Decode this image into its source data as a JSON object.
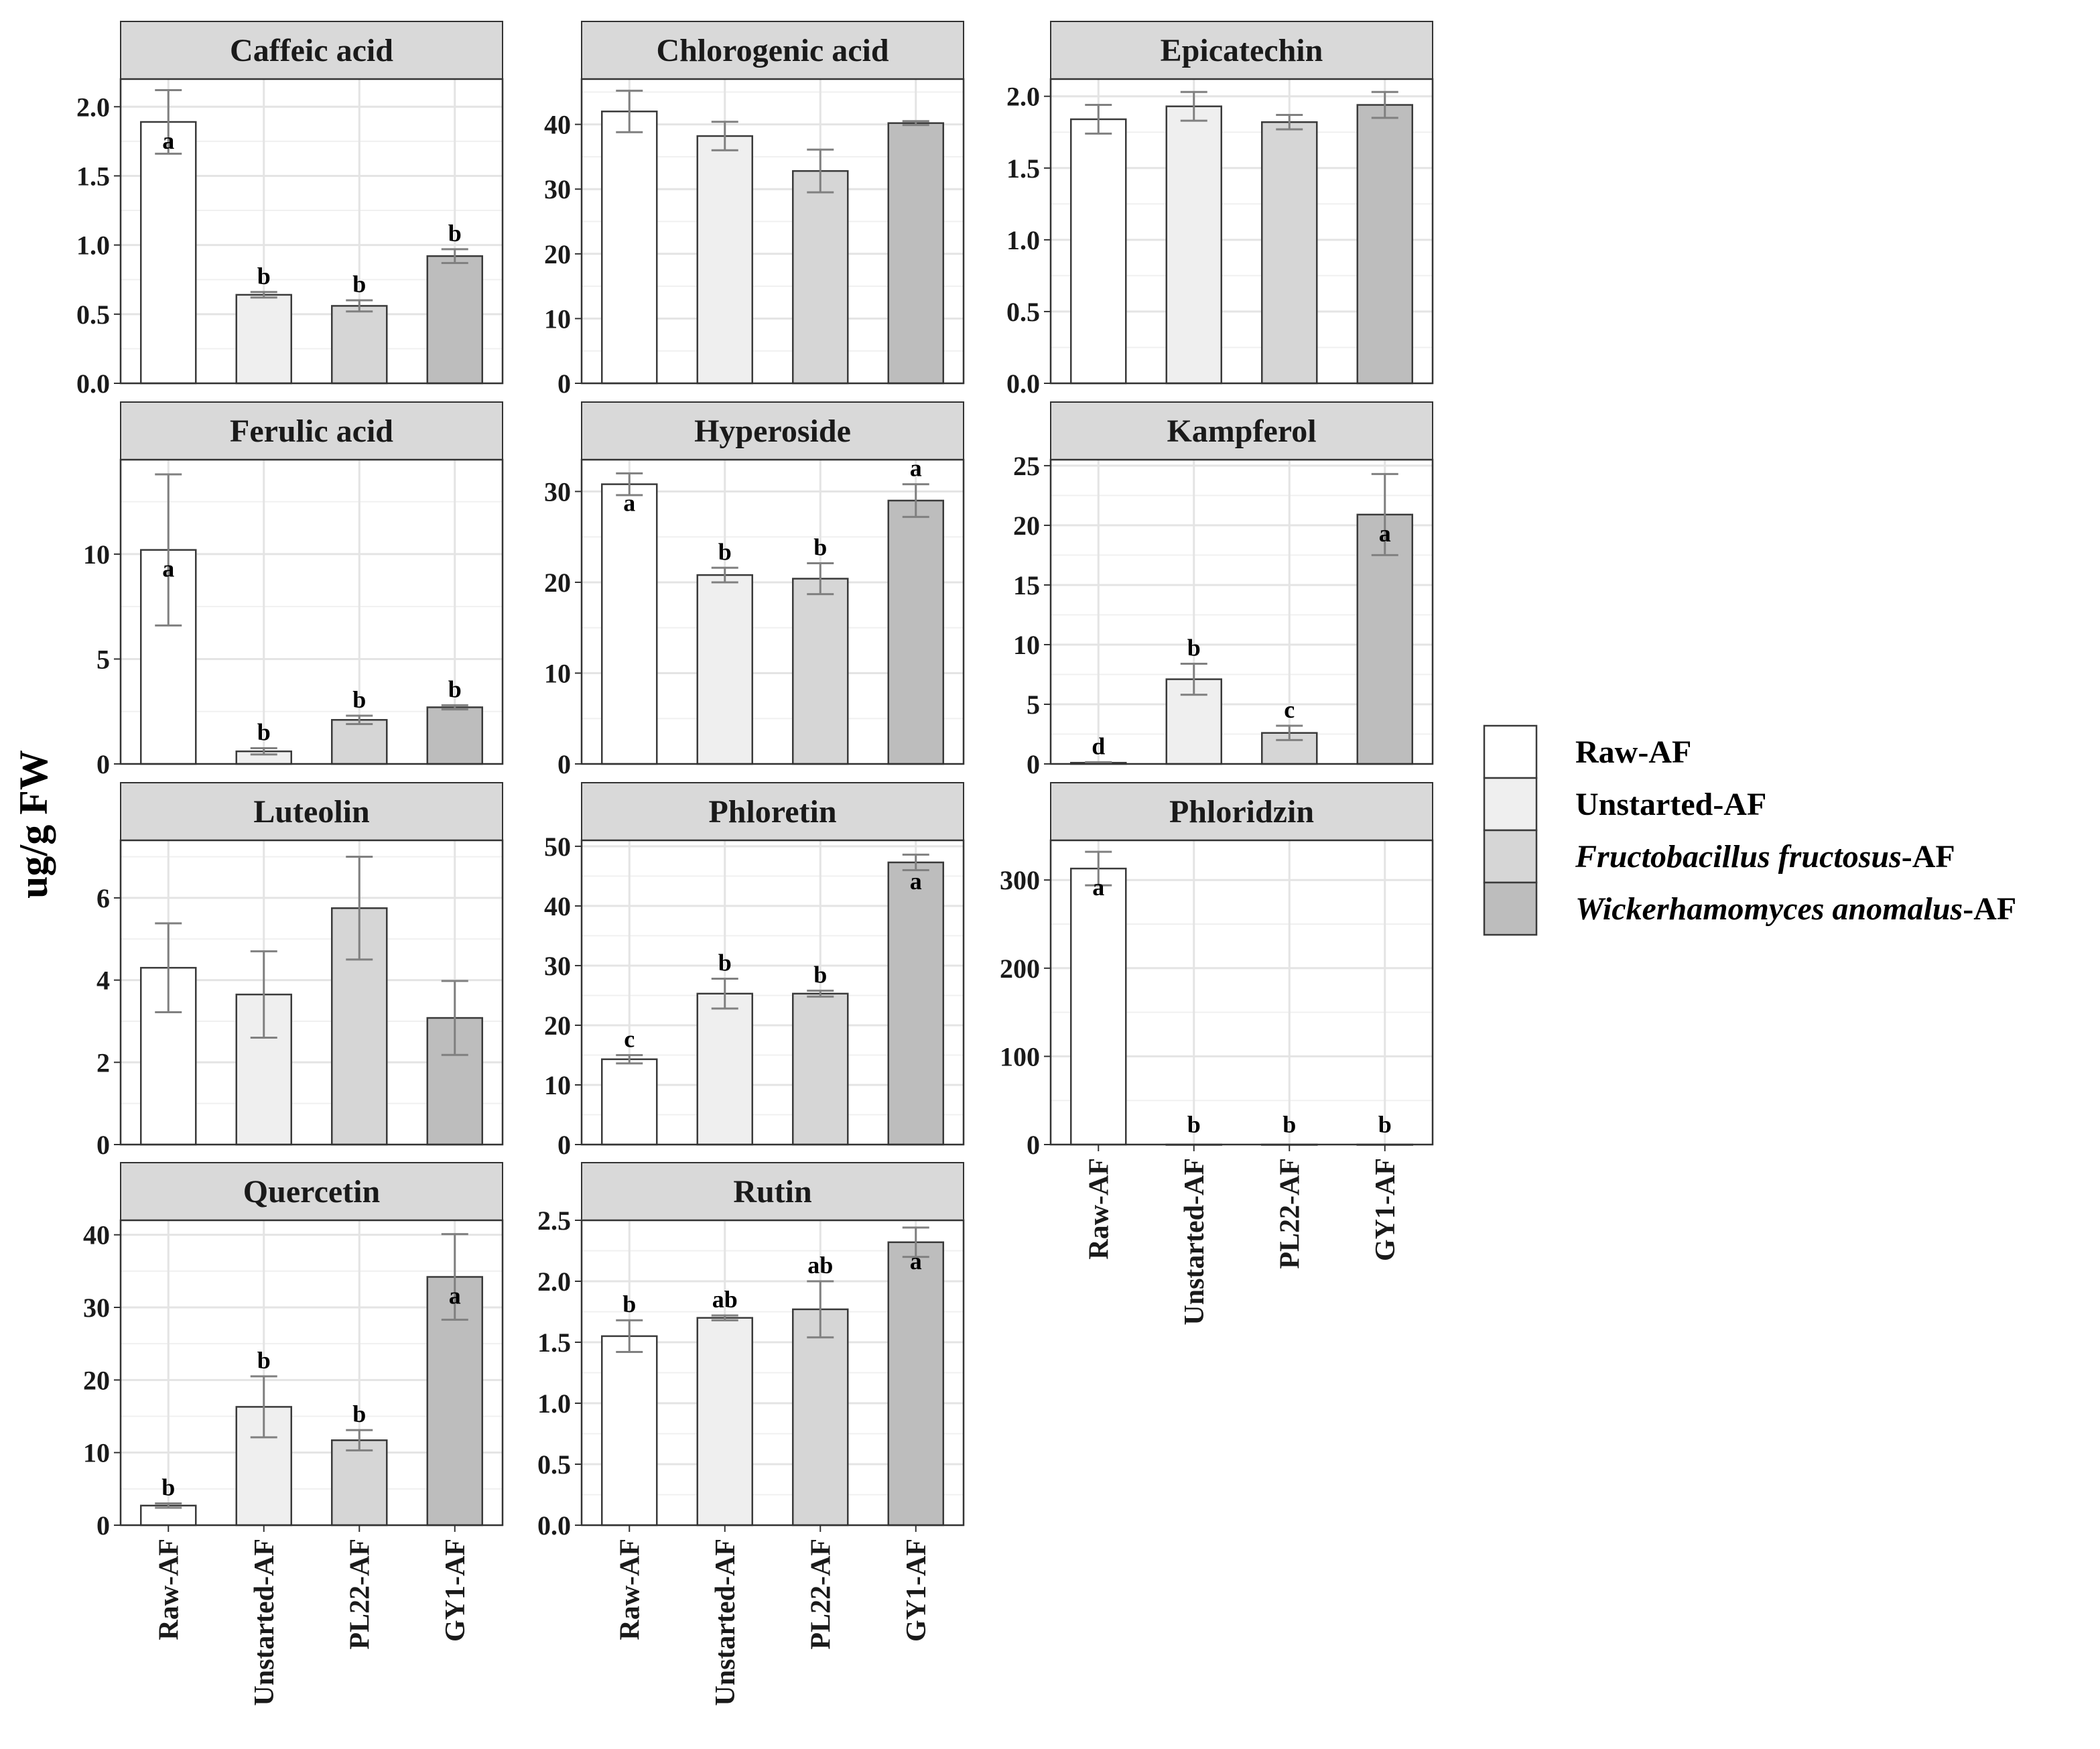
{
  "chart_data": {
    "type": "bar",
    "ylabel": "ug/g FW",
    "categories": [
      "Raw-AF",
      "Unstarted-AF",
      "PL22-AF",
      "GY1-AF"
    ],
    "colors": [
      "#ffffff",
      "#efefef",
      "#d6d6d6",
      "#bdbdbd"
    ],
    "legend": {
      "placement": "right",
      "items": [
        {
          "label": "Raw-AF",
          "italic_part": "",
          "plain_part": "Raw-AF",
          "color": "#ffffff"
        },
        {
          "label": "Unstarted-AF",
          "italic_part": "",
          "plain_part": "Unstarted-AF",
          "color": "#efefef"
        },
        {
          "label": "Fructobacillus fructosus-AF",
          "italic_part": "Fructobacillus fructosus",
          "plain_part": "-AF",
          "color": "#d6d6d6"
        },
        {
          "label": "Wickerhamomyces anomalus-AF",
          "italic_part": "Wickerhamomyces anomalus",
          "plain_part": "-AF",
          "color": "#bdbdbd"
        }
      ]
    },
    "panels": [
      {
        "title": "Caffeic acid",
        "ylim": [
          0,
          2.2
        ],
        "ticks": [
          0,
          0.5,
          1,
          1.5,
          2
        ],
        "tick_labels": [
          "0.0",
          "0.5",
          "1.0",
          "1.5",
          "2.0"
        ],
        "values": [
          1.89,
          0.64,
          0.56,
          0.92
        ],
        "errors": [
          0.23,
          0.02,
          0.04,
          0.05
        ],
        "letters": [
          "a",
          "b",
          "b",
          "b"
        ],
        "letter_pos": [
          "in",
          "top",
          "top",
          "top"
        ]
      },
      {
        "title": "Chlorogenic acid",
        "ylim": [
          0,
          47
        ],
        "ticks": [
          0,
          10,
          20,
          30,
          40
        ],
        "tick_labels": [
          "0",
          "10",
          "20",
          "30",
          "40"
        ],
        "values": [
          42.0,
          38.2,
          32.8,
          40.2
        ],
        "errors": [
          3.2,
          2.2,
          3.3,
          0.3
        ],
        "letters": [
          "",
          "",
          "",
          ""
        ],
        "letter_pos": [
          "top",
          "top",
          "top",
          "top"
        ]
      },
      {
        "title": "Epicatechin",
        "ylim": [
          0,
          2.12
        ],
        "ticks": [
          0,
          0.5,
          1,
          1.5,
          2
        ],
        "tick_labels": [
          "0.0",
          "0.5",
          "1.0",
          "1.5",
          "2.0"
        ],
        "values": [
          1.84,
          1.93,
          1.82,
          1.94
        ],
        "errors": [
          0.1,
          0.1,
          0.05,
          0.09
        ],
        "letters": [
          "",
          "",
          "",
          ""
        ],
        "letter_pos": [
          "top",
          "top",
          "top",
          "top"
        ]
      },
      {
        "title": "Ferulic acid",
        "ylim": [
          0,
          14.5
        ],
        "ticks": [
          0,
          5,
          10
        ],
        "tick_labels": [
          "0",
          "5",
          "10"
        ],
        "values": [
          10.2,
          0.6,
          2.1,
          2.7
        ],
        "errors": [
          3.6,
          0.15,
          0.2,
          0.1
        ],
        "letters": [
          "a",
          "b",
          "b",
          "b"
        ],
        "letter_pos": [
          "in",
          "top",
          "top",
          "top"
        ]
      },
      {
        "title": "Hyperoside",
        "ylim": [
          0,
          33.5
        ],
        "ticks": [
          0,
          10,
          20,
          30
        ],
        "tick_labels": [
          "0",
          "10",
          "20",
          "30"
        ],
        "values": [
          30.8,
          20.8,
          20.4,
          29.0
        ],
        "errors": [
          1.2,
          0.8,
          1.7,
          1.8
        ],
        "letters": [
          "a",
          "b",
          "b",
          "a"
        ],
        "letter_pos": [
          "in",
          "top",
          "top",
          "top"
        ]
      },
      {
        "title": "Kampferol",
        "ylim": [
          0,
          25.5
        ],
        "ticks": [
          0,
          5,
          10,
          15,
          20,
          25
        ],
        "tick_labels": [
          "0",
          "5",
          "10",
          "15",
          "20",
          "25"
        ],
        "values": [
          0.1,
          7.1,
          2.6,
          20.9
        ],
        "errors": [
          0.05,
          1.3,
          0.6,
          3.4
        ],
        "letters": [
          "d",
          "b",
          "c",
          "a"
        ],
        "letter_pos": [
          "top",
          "top",
          "top",
          "in"
        ]
      },
      {
        "title": "Luteolin",
        "ylim": [
          0,
          7.4
        ],
        "ticks": [
          0,
          2,
          4,
          6
        ],
        "tick_labels": [
          "0",
          "2",
          "4",
          "6"
        ],
        "values": [
          4.3,
          3.65,
          5.75,
          3.08
        ],
        "errors": [
          1.08,
          1.05,
          1.25,
          0.9
        ],
        "letters": [
          "",
          "",
          "",
          ""
        ],
        "letter_pos": [
          "top",
          "top",
          "top",
          "top"
        ]
      },
      {
        "title": "Phloretin",
        "ylim": [
          0,
          51
        ],
        "ticks": [
          0,
          10,
          20,
          30,
          40,
          50
        ],
        "tick_labels": [
          "0",
          "10",
          "20",
          "30",
          "40",
          "50"
        ],
        "values": [
          14.3,
          25.3,
          25.3,
          47.3
        ],
        "errors": [
          0.7,
          2.5,
          0.5,
          1.3
        ],
        "letters": [
          "c",
          "b",
          "b",
          "a"
        ],
        "letter_pos": [
          "top",
          "top",
          "top",
          "in"
        ]
      },
      {
        "title": "Phloridzin",
        "ylim": [
          0,
          345
        ],
        "ticks": [
          0,
          100,
          200,
          300
        ],
        "tick_labels": [
          "0",
          "100",
          "200",
          "300"
        ],
        "values": [
          313.0,
          0,
          0,
          0
        ],
        "errors": [
          19.0,
          0,
          0,
          0
        ],
        "letters": [
          "a",
          "b",
          "b",
          "b"
        ],
        "letter_pos": [
          "in",
          "base",
          "base",
          "base"
        ]
      },
      {
        "title": "Quercetin",
        "ylim": [
          0,
          42
        ],
        "ticks": [
          0,
          10,
          20,
          30,
          40
        ],
        "tick_labels": [
          "0",
          "10",
          "20",
          "30",
          "40"
        ],
        "values": [
          2.7,
          16.3,
          11.7,
          34.2
        ],
        "errors": [
          0.3,
          4.2,
          1.4,
          5.9
        ],
        "letters": [
          "b",
          "b",
          "b",
          "a"
        ],
        "letter_pos": [
          "top",
          "top",
          "top",
          "in"
        ]
      },
      {
        "title": "Rutin",
        "ylim": [
          0,
          2.5
        ],
        "ticks": [
          0,
          0.5,
          1,
          1.5,
          2,
          2.5
        ],
        "tick_labels": [
          "0.0",
          "0.5",
          "1.0",
          "1.5",
          "2.0",
          "2.5"
        ],
        "values": [
          1.55,
          1.7,
          1.77,
          2.32
        ],
        "errors": [
          0.13,
          0.02,
          0.23,
          0.12
        ],
        "letters": [
          "b",
          "ab",
          "ab",
          "a"
        ],
        "letter_pos": [
          "top",
          "top",
          "top",
          "in"
        ]
      }
    ]
  }
}
